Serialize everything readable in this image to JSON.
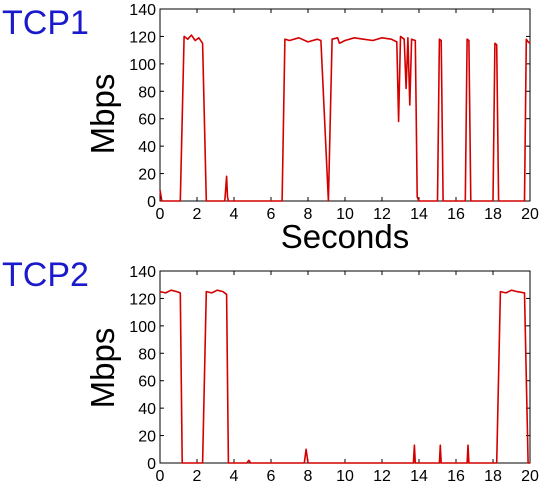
{
  "colors": {
    "series": "#d40000",
    "panel_label": "#1a1acc",
    "axis": "#000000",
    "background": "#ffffff"
  },
  "chart_data": [
    {
      "type": "line",
      "panel_label": "TCP1",
      "xlabel": "Seconds",
      "ylabel": "Mbps",
      "xlim": [
        0,
        20
      ],
      "ylim": [
        0,
        140
      ],
      "xticks": [
        0,
        2,
        4,
        6,
        8,
        10,
        12,
        14,
        16,
        18,
        20
      ],
      "yticks": [
        0,
        20,
        40,
        60,
        80,
        100,
        120,
        140
      ],
      "grid": false,
      "legend": "none",
      "series": [
        {
          "x": [
            0,
            0.1,
            0.15,
            1.1,
            1.3,
            1.5,
            1.7,
            1.9,
            2.1,
            2.3,
            2.5,
            3.5,
            3.6,
            3.65,
            3.7,
            6.6,
            6.75,
            7,
            7.5,
            8,
            8.5,
            8.7,
            9.1,
            9.3,
            9.6,
            9.7,
            10,
            10.5,
            11,
            11.5,
            12,
            12.5,
            12.8,
            12.9,
            13.0,
            13.2,
            13.3,
            13.4,
            13.5,
            13.6,
            13.8,
            13.9,
            14.0,
            15.0,
            15.1,
            15.2,
            15.3,
            16.5,
            16.6,
            16.7,
            16.8,
            18.0,
            18.1,
            18.2,
            18.3,
            19.7,
            19.8,
            19.9,
            20.0
          ],
          "y": [
            8,
            0,
            0,
            0,
            120,
            118,
            121,
            117,
            119,
            115,
            0,
            0,
            18,
            3,
            0,
            0,
            118,
            117,
            119,
            116,
            118,
            117,
            0,
            118,
            119,
            115,
            117,
            119,
            118,
            117,
            119,
            118,
            116,
            58,
            120,
            118,
            82,
            119,
            70,
            118,
            117,
            3,
            0,
            0,
            118,
            117,
            0,
            0,
            118,
            117,
            0,
            0,
            115,
            114,
            0,
            0,
            118,
            116,
            115
          ]
        }
      ]
    },
    {
      "type": "line",
      "panel_label": "TCP2",
      "xlabel": "",
      "ylabel": "Mbps",
      "xlim": [
        0,
        20
      ],
      "ylim": [
        0,
        140
      ],
      "xticks": [
        0,
        2,
        4,
        6,
        8,
        10,
        12,
        14,
        16,
        18,
        20
      ],
      "yticks": [
        0,
        20,
        40,
        60,
        80,
        100,
        120,
        140
      ],
      "grid": false,
      "legend": "none",
      "series": [
        {
          "x": [
            0,
            0.3,
            0.6,
            0.9,
            1.1,
            1.2,
            2.3,
            2.5,
            2.8,
            3.1,
            3.4,
            3.6,
            3.7,
            4.7,
            4.8,
            4.9,
            7.8,
            7.9,
            8.0,
            13.7,
            13.75,
            13.8,
            15.1,
            15.15,
            15.2,
            16.6,
            16.65,
            16.7,
            18.2,
            18.4,
            18.7,
            19.0,
            19.3,
            19.7,
            19.9,
            20.0
          ],
          "y": [
            125,
            124,
            126,
            125,
            124,
            0,
            0,
            125,
            124,
            126,
            125,
            123,
            0,
            0,
            2,
            0,
            0,
            10,
            0,
            0,
            13,
            0,
            0,
            13,
            0,
            0,
            13,
            0,
            0,
            125,
            124,
            126,
            125,
            124,
            0,
            0
          ]
        }
      ]
    }
  ]
}
